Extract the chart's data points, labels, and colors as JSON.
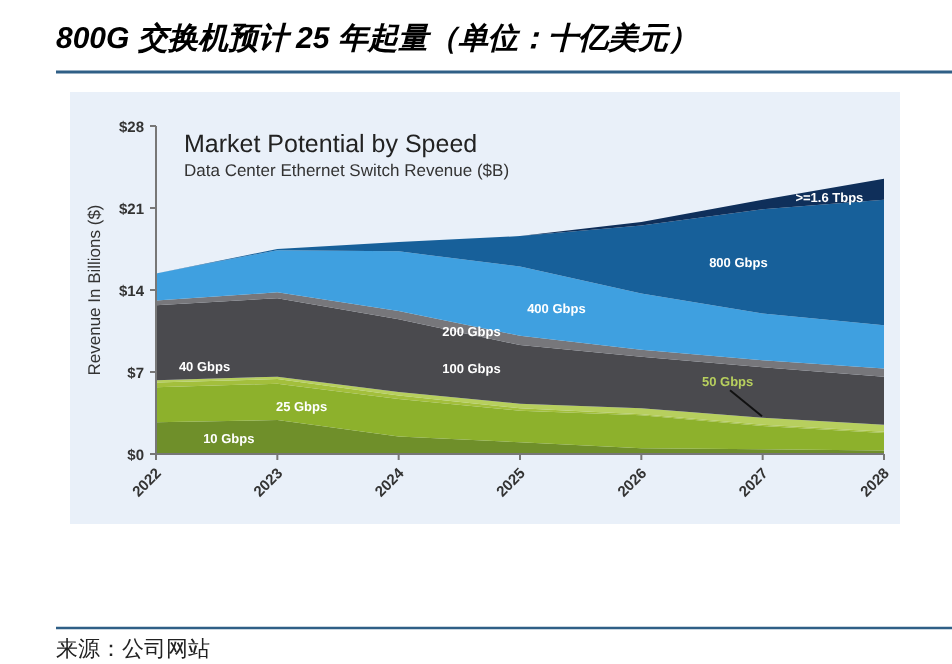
{
  "chart_data": {
    "type": "area",
    "stacked": true,
    "title": "800G 交换机预计 25 年起量（单位：十亿美元）",
    "subtitle": "Market Potential by Speed",
    "ylabel": "Revenue In Billions ($)",
    "annotations": [
      "Data Center Ethernet Switch Revenue ($B)",
      "来源：公司网站"
    ],
    "categories": [
      "2022",
      "2023",
      "2024",
      "2025",
      "2026",
      "2027",
      "2028"
    ],
    "ylim": [
      0,
      28
    ],
    "yticks": [
      {
        "value": 0,
        "label": "$0"
      },
      {
        "value": 7,
        "label": "$7"
      },
      {
        "value": 14,
        "label": "$14"
      },
      {
        "value": 21,
        "label": "$21"
      },
      {
        "value": 28,
        "label": "$28"
      }
    ],
    "grid": false,
    "series": [
      {
        "name": "10 Gbps",
        "color": "#6f8f2a",
        "values": [
          2.7,
          2.9,
          1.5,
          1.0,
          0.5,
          0.4,
          0.3
        ]
      },
      {
        "name": "25 Gbps",
        "color": "#8db12c",
        "values": [
          3.0,
          3.1,
          3.2,
          2.7,
          2.8,
          2.0,
          1.5
        ]
      },
      {
        "name": "40 Gbps",
        "color": "#a3bf3c",
        "values": [
          0.4,
          0.4,
          0.3,
          0.2,
          0.1,
          0.1,
          0.1
        ]
      },
      {
        "name": "50 Gbps",
        "color": "#b7cf5e",
        "values": [
          0.2,
          0.2,
          0.3,
          0.4,
          0.5,
          0.6,
          0.6
        ]
      },
      {
        "name": "100 Gbps",
        "color": "#4a4a4e",
        "values": [
          6.4,
          6.7,
          6.2,
          5.0,
          4.4,
          4.3,
          4.1
        ]
      },
      {
        "name": "200 Gbps",
        "color": "#77777b",
        "values": [
          0.4,
          0.5,
          0.7,
          0.8,
          0.6,
          0.6,
          0.7
        ]
      },
      {
        "name": "400 Gbps",
        "color": "#3fa0e0",
        "values": [
          2.3,
          3.6,
          5.1,
          5.9,
          4.8,
          4.0,
          3.7
        ]
      },
      {
        "name": "800 Gbps",
        "color": "#17609a",
        "values": [
          0,
          0.1,
          0.8,
          2.6,
          5.8,
          8.9,
          10.7
        ]
      },
      {
        "name": ">=1.6 Tbps",
        "color": "#0f2f5a",
        "values": [
          0,
          0,
          0,
          0,
          0.3,
          0.8,
          1.8
        ]
      }
    ]
  }
}
